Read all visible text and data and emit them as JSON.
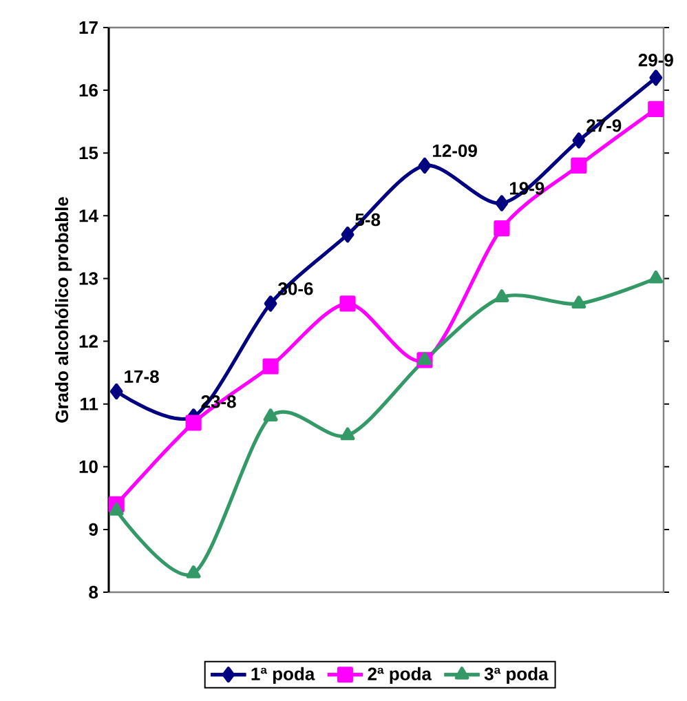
{
  "chart_data": {
    "type": "line",
    "ylabel": "Grado alcohólico probable",
    "categories": [
      null,
      null,
      null,
      null,
      null,
      null,
      null,
      null
    ],
    "ylim": [
      8,
      17
    ],
    "yticks": [
      8,
      9,
      10,
      11,
      12,
      13,
      14,
      15,
      16,
      17
    ],
    "tick_labels": "y",
    "legend": "bottom",
    "series": [
      {
        "name": "1ª poda",
        "color": "#000080",
        "marker": "diamond",
        "values": [
          11.2,
          10.8,
          12.6,
          13.7,
          14.8,
          14.2,
          15.2,
          16.2
        ]
      },
      {
        "name": "2ª poda",
        "color": "#ff00ff",
        "marker": "square",
        "values": [
          9.4,
          10.7,
          11.6,
          12.6,
          11.7,
          13.8,
          14.8,
          15.7
        ]
      },
      {
        "name": "3ª poda",
        "color": "#339966",
        "marker": "triangle",
        "values": [
          9.3,
          8.3,
          10.8,
          10.5,
          11.7,
          12.7,
          12.6,
          13.0
        ]
      }
    ],
    "annotations": [
      "17-8",
      "23-8",
      "30-6",
      "5-8",
      "12-09",
      "19-9",
      "27-9",
      "29-9"
    ]
  }
}
